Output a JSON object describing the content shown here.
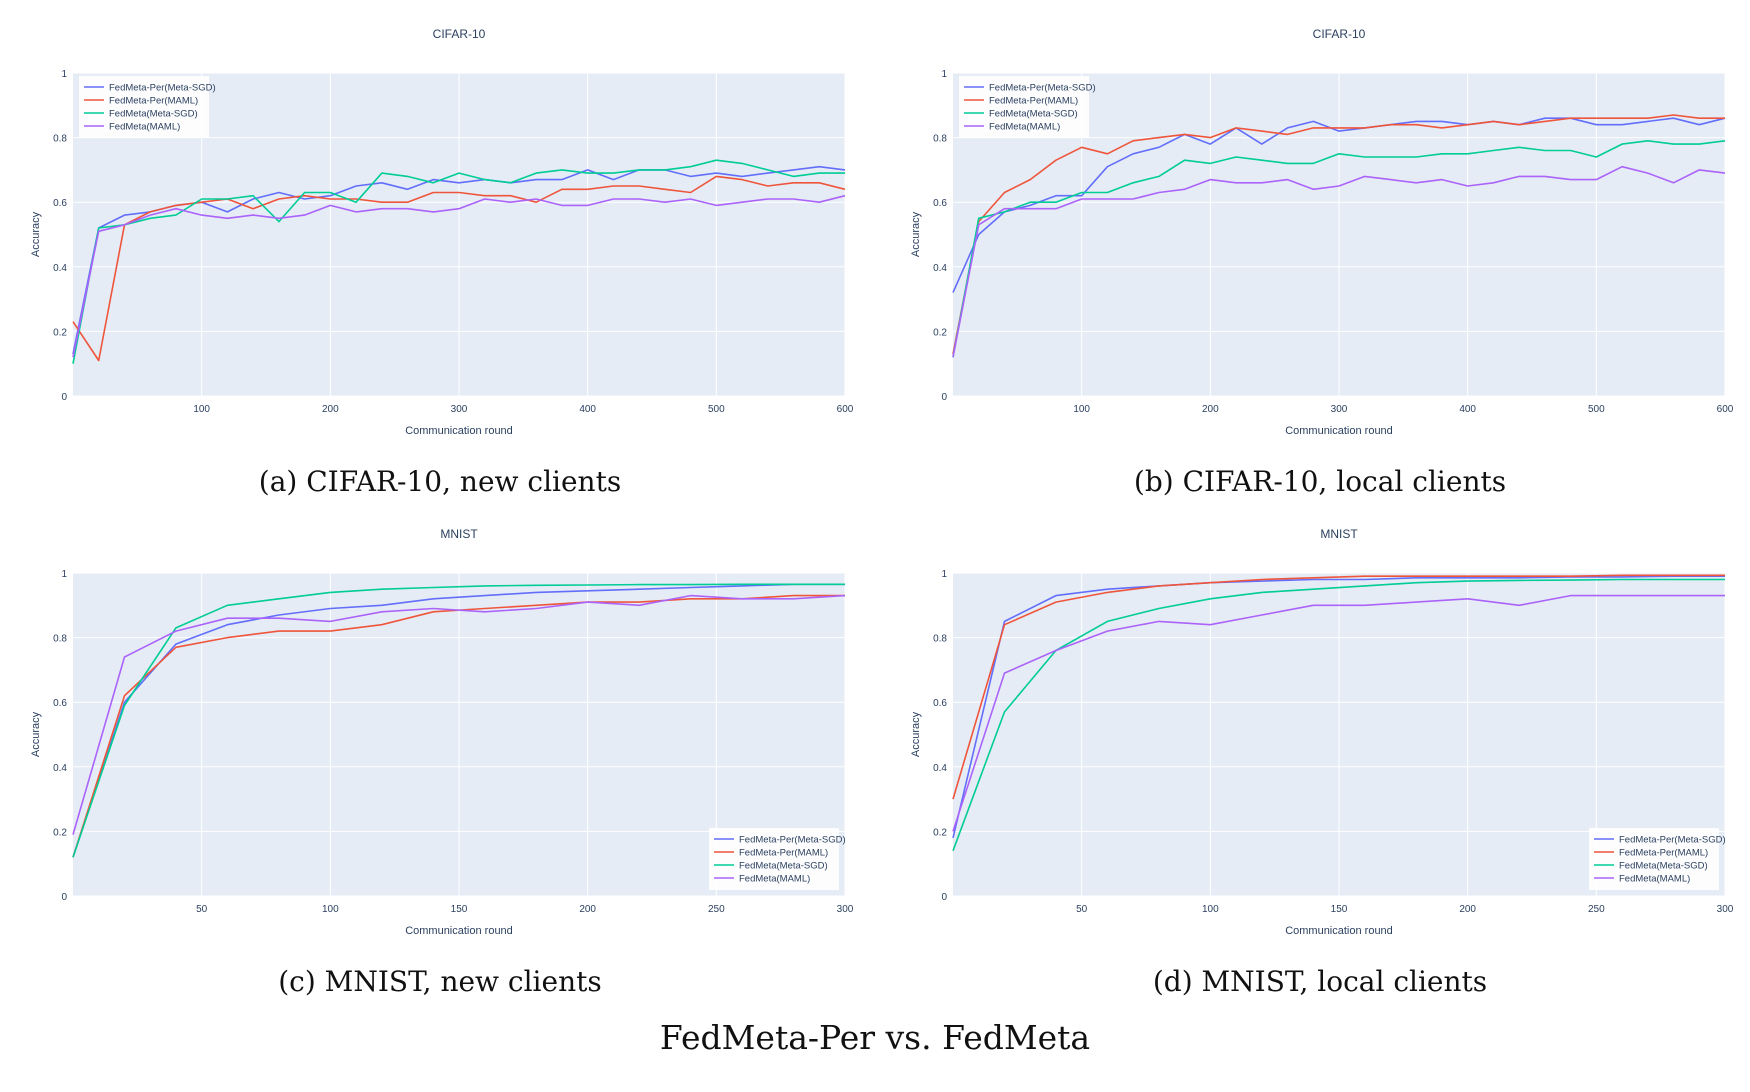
{
  "figure": {
    "title": "FedMeta-Per vs. FedMeta"
  },
  "colors": {
    "plot_bg": "#e5ecf6",
    "grid": "#ffffff",
    "text": "#2a3f5f"
  },
  "chart_data": [
    {
      "type": "line",
      "title": "CIFAR-10",
      "caption": "(a) CIFAR-10, new clients",
      "xlabel": "Communication round",
      "ylabel": "Accuracy",
      "xlim": [
        0,
        600
      ],
      "ylim": [
        0,
        1
      ],
      "xticks": [
        100,
        200,
        300,
        400,
        500,
        600
      ],
      "yticks": [
        0,
        0.2,
        0.4,
        0.6,
        0.8,
        1
      ],
      "legend_position": "top-left",
      "x": [
        0,
        20,
        40,
        60,
        80,
        100,
        120,
        140,
        160,
        180,
        200,
        220,
        240,
        260,
        280,
        300,
        320,
        340,
        360,
        380,
        400,
        420,
        440,
        460,
        480,
        500,
        520,
        540,
        560,
        580,
        600
      ],
      "series": [
        {
          "name": "FedMeta-Per(Meta-SGD)",
          "color": "#636efa",
          "values": [
            0.13,
            0.52,
            0.56,
            0.57,
            0.59,
            0.6,
            0.57,
            0.61,
            0.63,
            0.61,
            0.62,
            0.65,
            0.66,
            0.64,
            0.67,
            0.66,
            0.67,
            0.66,
            0.67,
            0.67,
            0.7,
            0.67,
            0.7,
            0.7,
            0.68,
            0.69,
            0.68,
            0.69,
            0.7,
            0.71,
            0.7
          ]
        },
        {
          "name": "FedMeta-Per(MAML)",
          "color": "#ef553b",
          "values": [
            0.23,
            0.11,
            0.53,
            0.57,
            0.59,
            0.6,
            0.61,
            0.58,
            0.61,
            0.62,
            0.61,
            0.61,
            0.6,
            0.6,
            0.63,
            0.63,
            0.62,
            0.62,
            0.6,
            0.64,
            0.64,
            0.65,
            0.65,
            0.64,
            0.63,
            0.68,
            0.67,
            0.65,
            0.66,
            0.66,
            0.64
          ]
        },
        {
          "name": "FedMeta(Meta-SGD)",
          "color": "#00cc96",
          "values": [
            0.1,
            0.52,
            0.53,
            0.55,
            0.56,
            0.61,
            0.61,
            0.62,
            0.54,
            0.63,
            0.63,
            0.6,
            0.69,
            0.68,
            0.66,
            0.69,
            0.67,
            0.66,
            0.69,
            0.7,
            0.69,
            0.69,
            0.7,
            0.7,
            0.71,
            0.73,
            0.72,
            0.7,
            0.68,
            0.69,
            0.69
          ]
        },
        {
          "name": "FedMeta(MAML)",
          "color": "#ab63fa",
          "values": [
            0.12,
            0.51,
            0.53,
            0.56,
            0.58,
            0.56,
            0.55,
            0.56,
            0.55,
            0.56,
            0.59,
            0.57,
            0.58,
            0.58,
            0.57,
            0.58,
            0.61,
            0.6,
            0.61,
            0.59,
            0.59,
            0.61,
            0.61,
            0.6,
            0.61,
            0.59,
            0.6,
            0.61,
            0.61,
            0.6,
            0.62
          ]
        }
      ]
    },
    {
      "type": "line",
      "title": "CIFAR-10",
      "caption": "(b) CIFAR-10, local clients",
      "xlabel": "Communication round",
      "ylabel": "Accuracy",
      "xlim": [
        0,
        600
      ],
      "ylim": [
        0,
        1
      ],
      "xticks": [
        100,
        200,
        300,
        400,
        500,
        600
      ],
      "yticks": [
        0,
        0.2,
        0.4,
        0.6,
        0.8,
        1
      ],
      "legend_position": "top-left",
      "x": [
        0,
        20,
        40,
        60,
        80,
        100,
        120,
        140,
        160,
        180,
        200,
        220,
        240,
        260,
        280,
        300,
        320,
        340,
        360,
        380,
        400,
        420,
        440,
        460,
        480,
        500,
        520,
        540,
        560,
        580,
        600
      ],
      "series": [
        {
          "name": "FedMeta-Per(Meta-SGD)",
          "color": "#636efa",
          "values": [
            0.32,
            0.5,
            0.57,
            0.59,
            0.62,
            0.62,
            0.71,
            0.75,
            0.77,
            0.81,
            0.78,
            0.83,
            0.78,
            0.83,
            0.85,
            0.82,
            0.83,
            0.84,
            0.85,
            0.85,
            0.84,
            0.85,
            0.84,
            0.86,
            0.86,
            0.84,
            0.84,
            0.85,
            0.86,
            0.84,
            0.86
          ]
        },
        {
          "name": "FedMeta-Per(MAML)",
          "color": "#ef553b",
          "values": [
            0.13,
            0.54,
            0.63,
            0.67,
            0.73,
            0.77,
            0.75,
            0.79,
            0.8,
            0.81,
            0.8,
            0.83,
            0.82,
            0.81,
            0.83,
            0.83,
            0.83,
            0.84,
            0.84,
            0.83,
            0.84,
            0.85,
            0.84,
            0.85,
            0.86,
            0.86,
            0.86,
            0.86,
            0.87,
            0.86,
            0.86
          ]
        },
        {
          "name": "FedMeta(Meta-SGD)",
          "color": "#00cc96",
          "values": [
            0.12,
            0.55,
            0.57,
            0.6,
            0.6,
            0.63,
            0.63,
            0.66,
            0.68,
            0.73,
            0.72,
            0.74,
            0.73,
            0.72,
            0.72,
            0.75,
            0.74,
            0.74,
            0.74,
            0.75,
            0.75,
            0.76,
            0.77,
            0.76,
            0.76,
            0.74,
            0.78,
            0.79,
            0.78,
            0.78,
            0.79
          ]
        },
        {
          "name": "FedMeta(MAML)",
          "color": "#ab63fa",
          "values": [
            0.12,
            0.53,
            0.58,
            0.58,
            0.58,
            0.61,
            0.61,
            0.61,
            0.63,
            0.64,
            0.67,
            0.66,
            0.66,
            0.67,
            0.64,
            0.65,
            0.68,
            0.67,
            0.66,
            0.67,
            0.65,
            0.66,
            0.68,
            0.68,
            0.67,
            0.67,
            0.71,
            0.69,
            0.66,
            0.7,
            0.69
          ]
        }
      ]
    },
    {
      "type": "line",
      "title": "MNIST",
      "caption": "(c) MNIST, new clients",
      "xlabel": "Communication round",
      "ylabel": "Accuracy",
      "xlim": [
        0,
        300
      ],
      "ylim": [
        0,
        1
      ],
      "xticks": [
        50,
        100,
        150,
        200,
        250,
        300
      ],
      "yticks": [
        0,
        0.2,
        0.4,
        0.6,
        0.8,
        1
      ],
      "legend_position": "bottom-right",
      "x": [
        0,
        20,
        40,
        60,
        80,
        100,
        120,
        140,
        160,
        180,
        200,
        220,
        240,
        260,
        280,
        300
      ],
      "series": [
        {
          "name": "FedMeta-Per(Meta-SGD)",
          "color": "#636efa",
          "values": [
            0.12,
            0.6,
            0.78,
            0.84,
            0.87,
            0.89,
            0.9,
            0.92,
            0.93,
            0.94,
            0.945,
            0.95,
            0.955,
            0.96,
            0.965,
            0.965
          ]
        },
        {
          "name": "FedMeta-Per(MAML)",
          "color": "#ef553b",
          "values": [
            0.12,
            0.62,
            0.77,
            0.8,
            0.82,
            0.82,
            0.84,
            0.88,
            0.89,
            0.9,
            0.91,
            0.91,
            0.92,
            0.92,
            0.93,
            0.93
          ]
        },
        {
          "name": "FedMeta(Meta-SGD)",
          "color": "#00cc96",
          "values": [
            0.12,
            0.59,
            0.83,
            0.9,
            0.92,
            0.94,
            0.95,
            0.955,
            0.96,
            0.962,
            0.963,
            0.964,
            0.964,
            0.965,
            0.965,
            0.965
          ]
        },
        {
          "name": "FedMeta(MAML)",
          "color": "#ab63fa",
          "values": [
            0.19,
            0.74,
            0.82,
            0.86,
            0.86,
            0.85,
            0.88,
            0.89,
            0.88,
            0.89,
            0.91,
            0.9,
            0.93,
            0.92,
            0.92,
            0.93
          ]
        }
      ]
    },
    {
      "type": "line",
      "title": "MNIST",
      "caption": "(d) MNIST, local clients",
      "xlabel": "Communication round",
      "ylabel": "Accuracy",
      "xlim": [
        0,
        300
      ],
      "ylim": [
        0,
        1
      ],
      "xticks": [
        50,
        100,
        150,
        200,
        250,
        300
      ],
      "yticks": [
        0,
        0.2,
        0.4,
        0.6,
        0.8,
        1
      ],
      "legend_position": "bottom-right",
      "x": [
        0,
        20,
        40,
        60,
        80,
        100,
        120,
        140,
        160,
        180,
        200,
        220,
        240,
        260,
        280,
        300
      ],
      "series": [
        {
          "name": "FedMeta-Per(Meta-SGD)",
          "color": "#636efa",
          "values": [
            0.18,
            0.85,
            0.93,
            0.95,
            0.96,
            0.97,
            0.975,
            0.98,
            0.98,
            0.985,
            0.985,
            0.985,
            0.988,
            0.988,
            0.99,
            0.99
          ]
        },
        {
          "name": "FedMeta-Per(MAML)",
          "color": "#ef553b",
          "values": [
            0.3,
            0.84,
            0.91,
            0.94,
            0.96,
            0.97,
            0.98,
            0.985,
            0.99,
            0.99,
            0.99,
            0.99,
            0.99,
            0.993,
            0.993,
            0.993
          ]
        },
        {
          "name": "FedMeta(Meta-SGD)",
          "color": "#00cc96",
          "values": [
            0.14,
            0.57,
            0.76,
            0.85,
            0.89,
            0.92,
            0.94,
            0.95,
            0.96,
            0.97,
            0.975,
            0.977,
            0.978,
            0.98,
            0.98,
            0.98
          ]
        },
        {
          "name": "FedMeta(MAML)",
          "color": "#ab63fa",
          "values": [
            0.2,
            0.69,
            0.76,
            0.82,
            0.85,
            0.84,
            0.87,
            0.9,
            0.9,
            0.91,
            0.92,
            0.9,
            0.93,
            0.93,
            0.93,
            0.93
          ]
        }
      ]
    }
  ]
}
